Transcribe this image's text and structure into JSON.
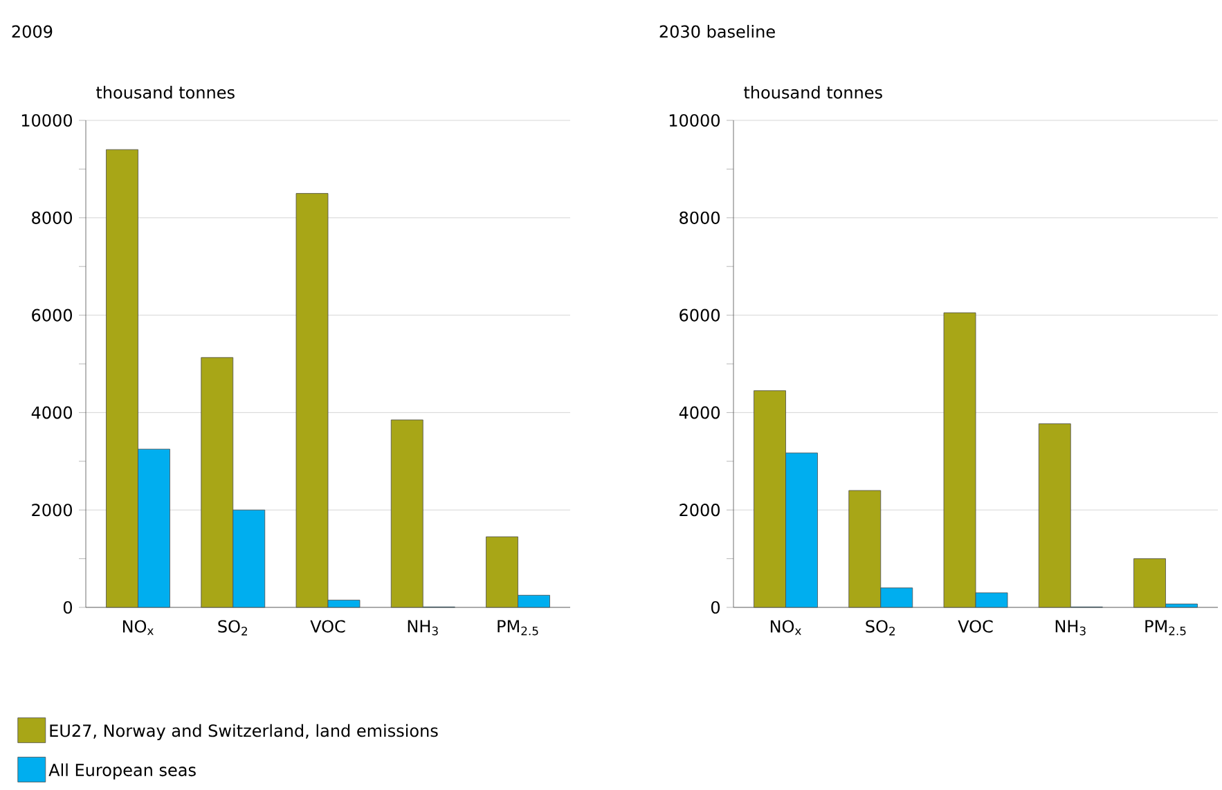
{
  "chart_data": [
    {
      "type": "bar",
      "title": "2009",
      "ylabel": "thousand tonnes",
      "categories": [
        "NO$_{x}$",
        "SO$_{2}$",
        "VOC",
        "NH$_{3}$",
        "PM$_{2.5}$"
      ],
      "series": [
        {
          "name": "EU27, Norway and Switzerland, land emissions",
          "color": "#a8a617",
          "values": [
            9400,
            5130,
            8500,
            3850,
            1450
          ]
        },
        {
          "name": "All European seas",
          "color": "#00aeef",
          "values": [
            3250,
            2000,
            150,
            10,
            250
          ]
        }
      ],
      "ylim": [
        0,
        10000
      ],
      "yticks": [
        0,
        {
          "value": 1000,
          "label": null
        },
        2000,
        {
          "value": 3000,
          "label": null
        },
        4000,
        {
          "value": 5000,
          "label": null
        },
        6000,
        {
          "value": 7000,
          "label": null
        },
        8000,
        {
          "value": 9000,
          "label": null
        },
        10000
      ],
      "grid": "y",
      "legend": "bottom left"
    },
    {
      "type": "bar",
      "title": "2030 baseline",
      "ylabel": "thousand tonnes",
      "categories": [
        "NO$_{x}$",
        "SO$_{2}$",
        "VOC",
        "NH$_{3}$",
        "PM$_{2.5}$"
      ],
      "series": [
        {
          "color": "#a8a617",
          "values": [
            4450,
            2400,
            6050,
            3770,
            1000
          ]
        },
        {
          "color": "#00aeef",
          "values": [
            3170,
            400,
            300,
            10,
            70
          ]
        }
      ],
      "ylim": [
        0,
        10000
      ],
      "yticks": [
        0,
        {
          "value": 1000,
          "label": null
        },
        2000,
        {
          "value": 3000,
          "label": null
        },
        4000,
        {
          "value": 5000,
          "label": null
        },
        6000,
        {
          "value": 7000,
          "label": null
        },
        8000,
        {
          "value": 9000,
          "label": null
        },
        10000
      ],
      "grid": "y"
    }
  ]
}
